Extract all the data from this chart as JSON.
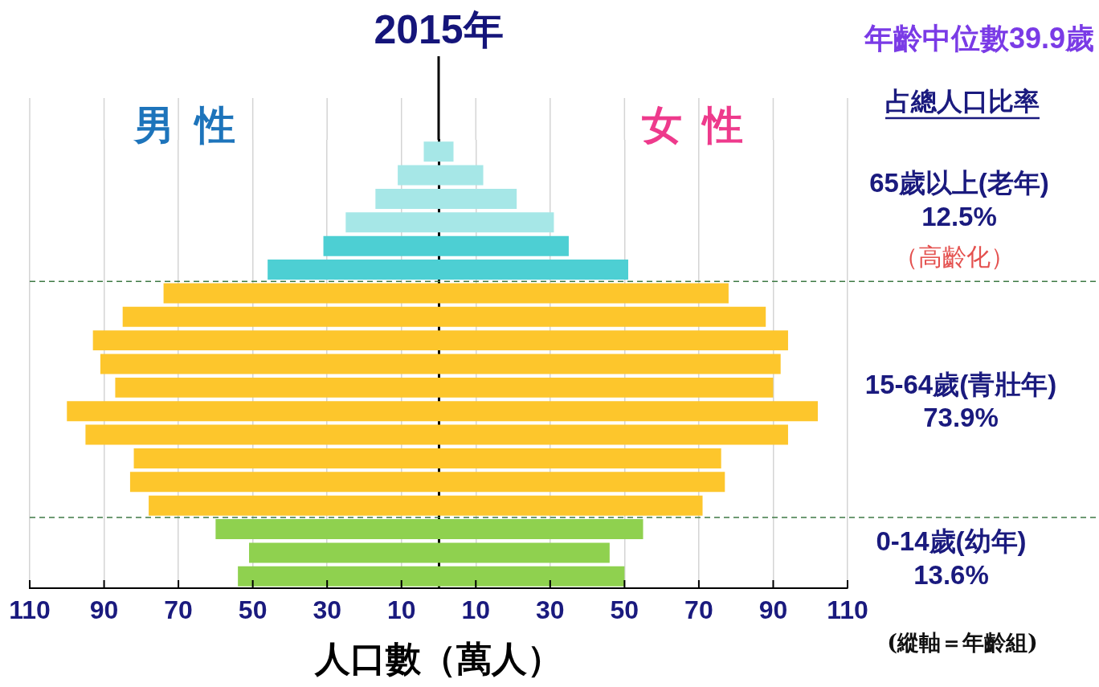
{
  "chart_data": {
    "type": "bar",
    "orientation": "horizontal",
    "stacked": true,
    "title": "2015年",
    "xlabel": "人口數（萬人）",
    "categories": [
      null,
      null,
      null,
      null,
      null,
      null,
      null,
      null,
      null,
      null,
      null,
      null,
      null,
      null,
      null,
      null,
      null,
      null,
      null
    ],
    "series": [
      {
        "name": "男性",
        "values": [
          -4,
          -11,
          -17,
          -25,
          -31,
          -46,
          -74,
          -85,
          -93,
          -91,
          -87,
          -100,
          -95,
          -82,
          -83,
          -78,
          -60,
          -51,
          -54
        ],
        "colors": [
          "#a6e7e7",
          "#a6e7e7",
          "#a6e7e7",
          "#a6e7e7",
          "#4dcfd3",
          "#4dcfd3",
          "#fdc62c",
          "#fdc62c",
          "#fdc62c",
          "#fdc62c",
          "#fdc62c",
          "#fdc62c",
          "#fdc62c",
          "#fdc62c",
          "#fdc62c",
          "#fdc62c",
          "#8fd14f",
          "#8fd14f",
          "#8fd14f"
        ]
      },
      {
        "name": "女性",
        "values": [
          4,
          12,
          21,
          31,
          35,
          51,
          78,
          88,
          94,
          92,
          90,
          102,
          94,
          76,
          77,
          71,
          55,
          46,
          50
        ],
        "colors": [
          "#a6e7e7",
          "#a6e7e7",
          "#a6e7e7",
          "#a6e7e7",
          "#4dcfd3",
          "#4dcfd3",
          "#fdc62c",
          "#fdc62c",
          "#fdc62c",
          "#fdc62c",
          "#fdc62c",
          "#fdc62c",
          "#fdc62c",
          "#fdc62c",
          "#fdc62c",
          "#fdc62c",
          "#8fd14f",
          "#8fd14f",
          "#8fd14f"
        ]
      }
    ],
    "xlim": [
      -110,
      110
    ],
    "xticks": [
      {
        "value": -110,
        "label": "110"
      },
      {
        "value": -90,
        "label": "90"
      },
      {
        "value": -70,
        "label": "70"
      },
      {
        "value": -50,
        "label": "50"
      },
      {
        "value": -30,
        "label": "30"
      },
      {
        "value": -10,
        "label": "10"
      },
      10,
      30,
      50,
      70,
      90,
      110
    ],
    "grid": "x",
    "annotations": [
      "年齡中位數39.9歲",
      "占總人口比率",
      "65歲以上(老年)",
      "12.5%",
      "（高齡化）",
      "15-64歲(青壯年)",
      "73.9%",
      "0-14歲(幼年)",
      "13.6%",
      "(縱軸＝年齡組)"
    ]
  }
}
